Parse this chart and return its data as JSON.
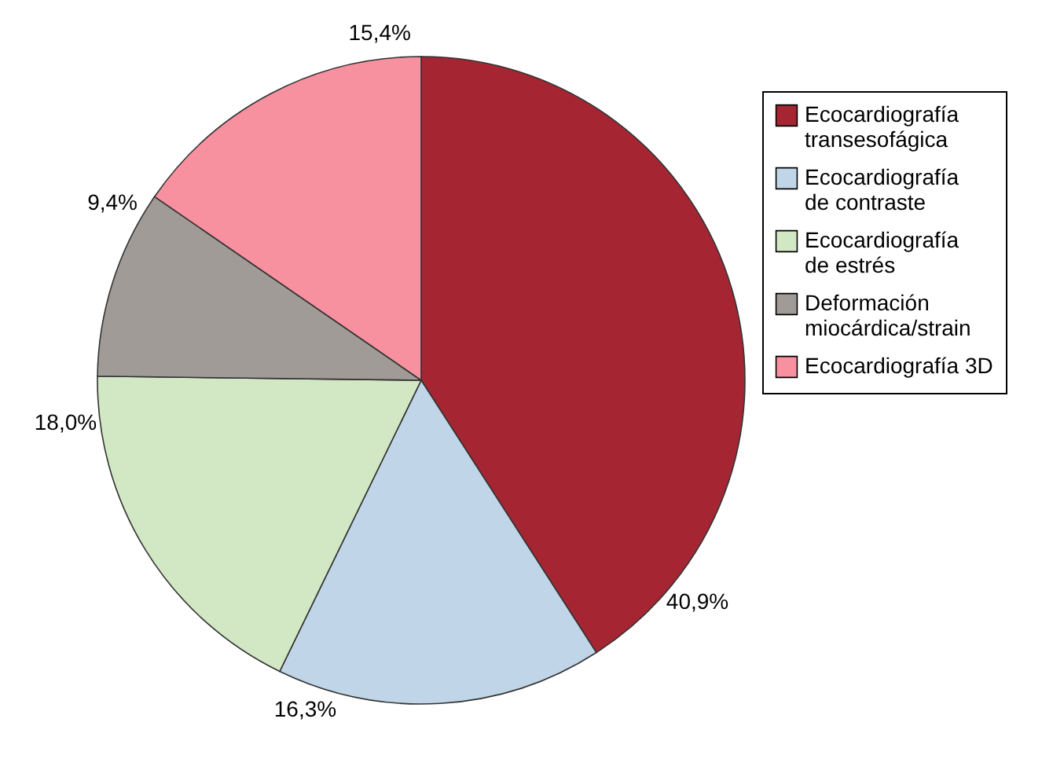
{
  "chart_data": {
    "type": "pie",
    "categories": [
      "Ecocardiografía transesofágica",
      "Ecocardiografía de contraste",
      "Ecocardiografía de estrés",
      "Deformación miocárdica/strain",
      "Ecocardiografía 3D"
    ],
    "values": [
      40.9,
      16.3,
      18.0,
      9.4,
      15.4
    ],
    "value_labels": [
      "40,9%",
      "16,3%",
      "18,0%",
      "9,4%",
      "15,4%"
    ],
    "colors": [
      "#a52632",
      "#c0d6e8",
      "#d2e7c3",
      "#a19b97",
      "#f7919f"
    ],
    "legend": "right"
  }
}
